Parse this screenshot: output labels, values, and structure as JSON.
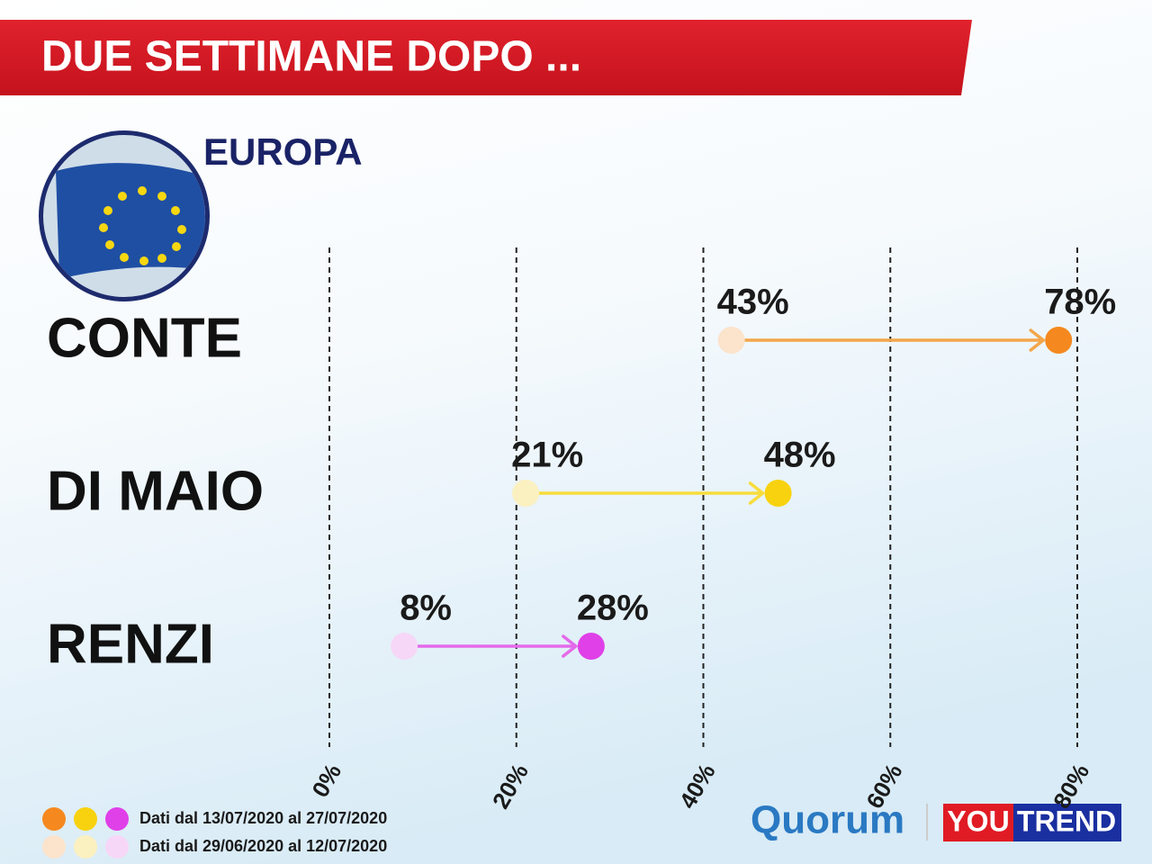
{
  "chart_data": {
    "type": "arrow",
    "title": "DUE SETTIMANE DOPO ...",
    "subtitle": "EUROPA",
    "categories": [
      "CONTE",
      "DI MAIO",
      "RENZI"
    ],
    "series": [
      {
        "name": "Dati dal 29/06/2020 al 12/07/2020",
        "colors": [
          "#fbe3cc",
          "#fbf0c0",
          "#f7d7f7"
        ],
        "values": [
          43,
          21,
          8
        ],
        "value_labels": [
          "43%",
          "21%",
          "8%"
        ]
      },
      {
        "name": "Dati dal 13/07/2020 al 27/07/2020",
        "colors": [
          "#f5891f",
          "#f8d20f",
          "#e040e8"
        ],
        "values": [
          78,
          48,
          28
        ],
        "value_labels": [
          "78%",
          "48%",
          "28%"
        ]
      }
    ],
    "line_colors": [
      "#f3a64a",
      "#f8dc3c",
      "#e46ae9"
    ],
    "xlim": [
      0,
      80
    ],
    "xticks": [
      {
        "value": 0,
        "label": "0%"
      },
      {
        "value": 20,
        "label": "20%"
      },
      {
        "value": 40,
        "label": "40%"
      },
      {
        "value": 60,
        "label": "60%"
      },
      {
        "value": 80,
        "label": "80%"
      }
    ],
    "grid": true
  },
  "logos": {
    "quorum": "Quorum",
    "you": "YOU",
    "trend": "TREND"
  }
}
